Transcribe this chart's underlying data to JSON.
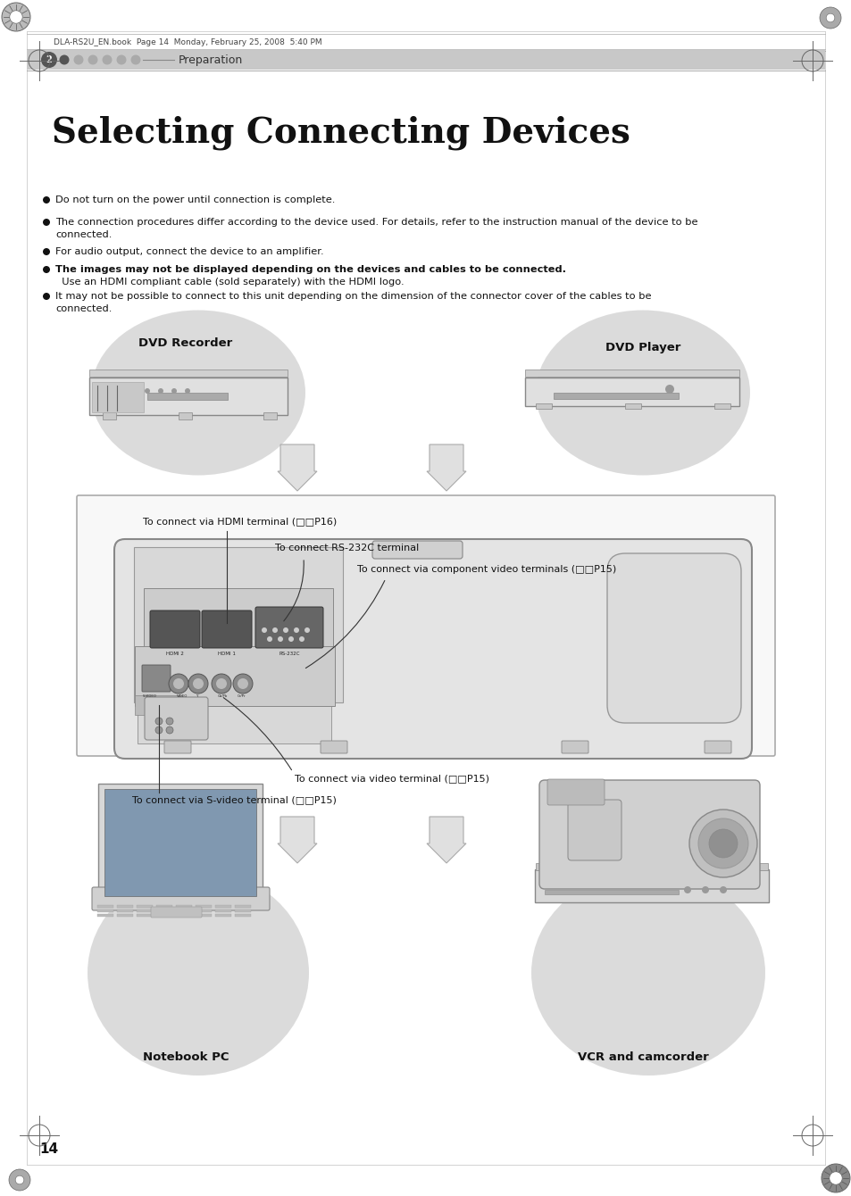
{
  "page_header_text": "DLA-RS2U_EN.book  Page 14  Monday, February 25, 2008  5:40 PM",
  "chapter_label": "2",
  "chapter_title": "Preparation",
  "page_title": "Selecting Connecting Devices",
  "bullet1": "Do not turn on the power until connection is complete.",
  "bullet2_line1": "The connection procedures differ according to the device used. For details, refer to the instruction manual of the device to be",
  "bullet2_line2": "connected.",
  "bullet3": "For audio output, connect the device to an amplifier.",
  "bullet4_bold": "The images may not be displayed depending on the devices and cables to be connected.",
  "bullet4_sub": "  Use an HDMI compliant cable (sold separately) with the HDMI logo.",
  "bullet5_line1": "It may not be possible to connect to this unit depending on the dimension of the connector cover of the cables to be",
  "bullet5_line2": "connected.",
  "conn1": "To connect via HDMI terminal (□□P16)",
  "conn2": "To connect RS-232C terminal",
  "conn3": "To connect via component video terminals (□□P15)",
  "conn4": "To connect via video terminal (□□P15)",
  "conn5": "To connect via S-video terminal (□□P15)",
  "page_number": "14",
  "bg": "#ffffff",
  "circle_bg": "#d8d8d8",
  "projbox_bg": "#f8f8f8",
  "projbox_border": "#aaaaaa",
  "proj_body_bg": "#e8e8e8",
  "proj_body_border": "#888888",
  "header_bar_bg": "#c8c8c8",
  "arrow_fill": "#e0e0e0",
  "arrow_edge": "#aaaaaa"
}
